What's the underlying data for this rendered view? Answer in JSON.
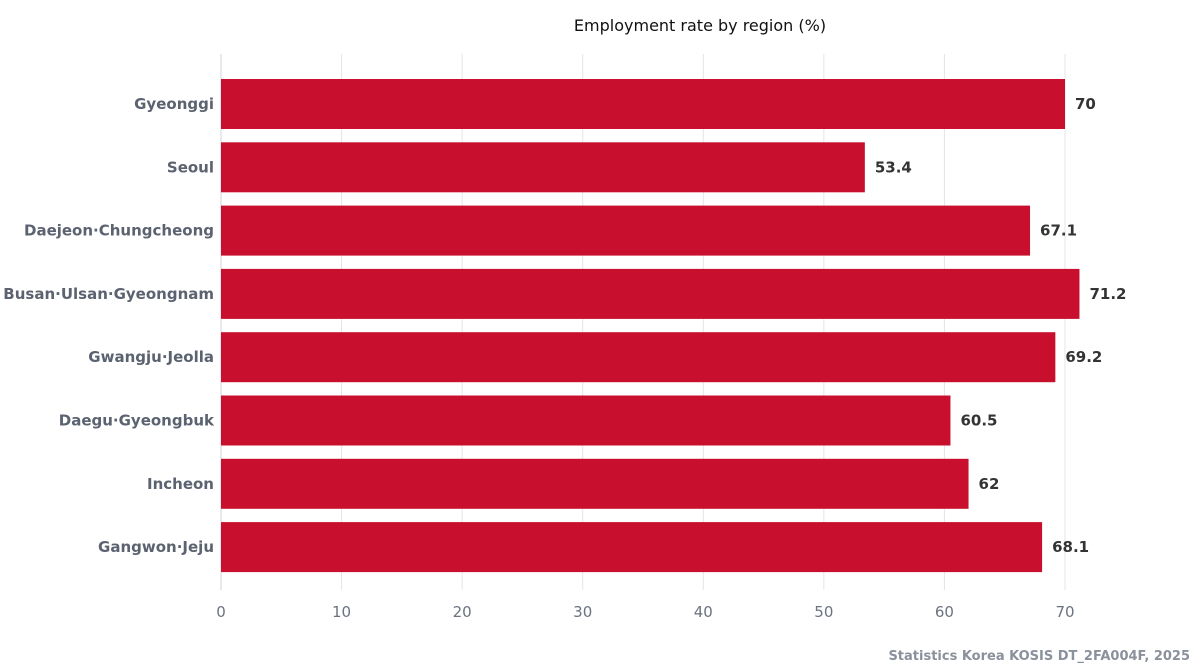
{
  "chart_data": {
    "type": "bar",
    "orientation": "horizontal",
    "title": "Employment rate by region (%)",
    "xlabel": "",
    "ylabel": "",
    "categories": [
      "Gyeonggi",
      "Seoul",
      "Daejeon·Chungcheong",
      "Busan·Ulsan·Gyeongnam",
      "Gwangju·Jeolla",
      "Daegu·Gyeongbuk",
      "Incheon",
      "Gangwon·Jeju"
    ],
    "values": [
      70,
      53.4,
      67.1,
      71.2,
      69.2,
      60.5,
      62,
      68.1
    ],
    "value_labels": [
      "70",
      "53.4",
      "67.1",
      "71.2",
      "69.2",
      "60.5",
      "62",
      "68.1"
    ],
    "xlim": [
      0,
      70
    ],
    "xticks": [
      0,
      10,
      20,
      30,
      40,
      50,
      60,
      70
    ],
    "xtick_labels": [
      "0",
      "10",
      "20",
      "30",
      "40",
      "50",
      "60",
      "70"
    ],
    "grid": true,
    "legend": "none",
    "bar_color": "#c8102e",
    "source": "Statistics Korea KOSIS DT_2FA004F, 2025"
  }
}
